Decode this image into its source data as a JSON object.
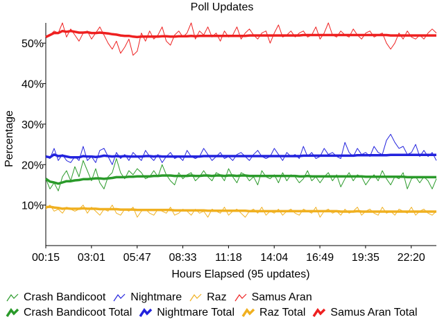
{
  "chart_data": {
    "type": "line",
    "title": "Poll Updates",
    "xlabel": "Hours Elapsed (95 updates)",
    "ylabel": "Percentage",
    "ylim": [
      0,
      55
    ],
    "y_ticks": [
      "10%",
      "20%",
      "30%",
      "40%",
      "50%"
    ],
    "y_tick_values": [
      10,
      20,
      30,
      40,
      50
    ],
    "x_ticks": [
      "00:15",
      "03:01",
      "05:47",
      "08:33",
      "11:18",
      "14:04",
      "16:49",
      "19:35",
      "22:20"
    ],
    "updates": 95,
    "series": [
      {
        "name": "Crash Bandicoot",
        "color": "#2a9a2a",
        "kind": "update",
        "values": [
          16.5,
          14.0,
          15.5,
          13.5,
          17.0,
          18.5,
          16.0,
          19.5,
          17.0,
          21.0,
          18.5,
          16.0,
          19.0,
          15.5,
          14.0,
          17.0,
          18.0,
          21.5,
          18.0,
          16.5,
          18.5,
          17.5,
          19.0,
          18.0,
          16.5,
          17.0,
          18.5,
          17.0,
          20.0,
          17.5,
          16.0,
          15.0,
          18.0,
          16.5,
          17.5,
          18.0,
          16.0,
          17.0,
          18.5,
          17.0,
          16.0,
          18.0,
          17.5,
          16.0,
          19.0,
          17.0,
          15.5,
          18.0,
          17.5,
          16.0,
          17.0,
          15.0,
          18.5,
          17.0,
          16.5,
          17.5,
          15.5,
          18.0,
          16.0,
          17.5,
          17.0,
          15.5,
          16.5,
          18.5,
          16.0,
          17.0,
          15.5,
          17.0,
          18.0,
          16.0,
          17.5,
          14.5,
          16.5,
          18.0,
          16.0,
          17.5,
          17.0,
          15.0,
          16.5,
          17.5,
          16.0,
          18.5,
          16.5,
          15.0,
          17.0,
          16.5,
          18.0,
          14.0,
          16.5,
          17.0,
          15.5,
          17.0,
          16.0,
          14.0,
          16.5
        ]
      },
      {
        "name": "Nightmare",
        "color": "#2222dd",
        "kind": "update",
        "values": [
          22.0,
          21.5,
          24.0,
          21.0,
          22.5,
          21.0,
          20.5,
          22.0,
          21.0,
          24.5,
          21.0,
          22.0,
          20.5,
          23.5,
          24.0,
          22.0,
          20.0,
          23.0,
          21.5,
          22.5,
          21.0,
          23.0,
          22.0,
          21.0,
          23.5,
          22.0,
          21.0,
          22.5,
          20.5,
          22.0,
          23.0,
          21.5,
          22.0,
          21.0,
          23.5,
          22.0,
          21.5,
          22.0,
          24.0,
          22.5,
          21.0,
          22.0,
          23.0,
          21.5,
          22.0,
          21.0,
          22.5,
          23.0,
          22.0,
          21.0,
          22.5,
          23.5,
          22.0,
          21.5,
          22.0,
          24.0,
          22.5,
          21.0,
          23.0,
          22.0,
          22.5,
          21.5,
          24.5,
          22.0,
          23.0,
          21.5,
          22.0,
          24.0,
          22.5,
          23.0,
          22.0,
          21.5,
          25.5,
          23.0,
          22.0,
          24.0,
          22.5,
          23.0,
          22.0,
          24.5,
          23.0,
          22.5,
          26.0,
          27.5,
          25.5,
          24.0,
          24.5,
          22.5,
          23.0,
          25.0,
          22.0,
          23.5,
          22.0,
          23.0,
          21.0
        ]
      },
      {
        "name": "Raz",
        "color": "#f0b020",
        "kind": "update",
        "values": [
          9.0,
          10.0,
          8.5,
          9.0,
          8.0,
          9.5,
          9.0,
          8.5,
          9.0,
          10.0,
          8.0,
          9.5,
          8.5,
          7.5,
          9.0,
          8.5,
          10.0,
          8.0,
          7.5,
          9.0,
          8.5,
          9.5,
          7.0,
          8.5,
          9.0,
          8.0,
          7.5,
          9.0,
          8.5,
          8.0,
          9.5,
          7.5,
          8.0,
          9.0,
          8.5,
          7.5,
          9.0,
          8.0,
          8.5,
          7.0,
          9.0,
          8.5,
          8.0,
          9.5,
          7.5,
          8.5,
          9.0,
          8.0,
          7.0,
          8.5,
          9.0,
          8.0,
          9.5,
          7.5,
          8.5,
          8.0,
          9.0,
          7.5,
          8.5,
          9.0,
          8.0,
          7.5,
          9.0,
          8.5,
          8.0,
          9.5,
          7.0,
          8.5,
          9.0,
          8.0,
          8.5,
          7.5,
          9.0,
          8.0,
          8.5,
          9.5,
          7.5,
          8.5,
          9.0,
          8.0,
          7.5,
          9.5,
          8.0,
          8.5,
          7.5,
          9.0,
          8.5,
          8.0,
          9.5,
          7.5,
          8.5,
          9.0,
          8.0,
          7.5,
          8.5
        ]
      },
      {
        "name": "Samus Aran",
        "color": "#ee2020",
        "kind": "update",
        "values": [
          51.5,
          52.0,
          53.0,
          52.5,
          55.0,
          51.5,
          53.5,
          52.0,
          50.5,
          52.5,
          53.0,
          51.0,
          52.5,
          54.0,
          52.0,
          50.0,
          48.5,
          50.5,
          47.5,
          49.0,
          51.0,
          47.0,
          48.0,
          52.5,
          50.5,
          53.0,
          51.0,
          52.0,
          54.0,
          50.5,
          49.5,
          52.0,
          53.0,
          51.5,
          52.5,
          55.0,
          51.0,
          53.0,
          52.0,
          54.0,
          51.5,
          52.5,
          50.5,
          53.0,
          51.5,
          52.0,
          54.0,
          51.0,
          52.5,
          53.5,
          52.0,
          51.0,
          52.5,
          53.0,
          50.0,
          52.5,
          54.5,
          51.5,
          52.0,
          53.0,
          51.5,
          52.5,
          53.0,
          51.5,
          52.0,
          54.0,
          51.0,
          52.5,
          55.0,
          52.0,
          51.5,
          53.0,
          52.0,
          51.5,
          53.5,
          52.0,
          51.0,
          52.5,
          53.0,
          51.5,
          52.0,
          52.5,
          50.0,
          48.5,
          50.0,
          52.5,
          51.0,
          53.0,
          51.5,
          51.0,
          52.0,
          51.0,
          52.5,
          53.5,
          52.5
        ]
      },
      {
        "name": "Crash Bandicoot Total",
        "color": "#2a9a2a",
        "kind": "total",
        "values": [
          16.5,
          15.8,
          15.6,
          15.3,
          15.6,
          15.9,
          15.9,
          16.1,
          16.2,
          16.4,
          16.4,
          16.5,
          16.6,
          16.6,
          16.5,
          16.6,
          16.7,
          16.9,
          16.9,
          16.9,
          17.0,
          17.0,
          17.1,
          17.1,
          17.1,
          17.1,
          17.2,
          17.2,
          17.3,
          17.3,
          17.3,
          17.2,
          17.2,
          17.2,
          17.2,
          17.3,
          17.2,
          17.2,
          17.3,
          17.3,
          17.2,
          17.3,
          17.3,
          17.2,
          17.3,
          17.3,
          17.2,
          17.3,
          17.3,
          17.2,
          17.2,
          17.2,
          17.2,
          17.2,
          17.2,
          17.2,
          17.2,
          17.2,
          17.2,
          17.2,
          17.2,
          17.1,
          17.1,
          17.2,
          17.1,
          17.1,
          17.1,
          17.1,
          17.1,
          17.1,
          17.1,
          17.1,
          17.1,
          17.1,
          17.1,
          17.1,
          17.1,
          17.0,
          17.0,
          17.0,
          17.0,
          17.0,
          17.0,
          17.0,
          17.0,
          17.0,
          17.0,
          16.9,
          16.9,
          16.9,
          16.9,
          16.9,
          16.9,
          16.9,
          16.9
        ]
      },
      {
        "name": "Nightmare Total",
        "color": "#2222dd",
        "kind": "total",
        "values": [
          22.0,
          21.8,
          22.5,
          22.1,
          22.2,
          22.0,
          21.8,
          21.8,
          21.8,
          22.1,
          22.0,
          22.0,
          21.9,
          22.0,
          22.2,
          22.1,
          22.0,
          22.1,
          22.0,
          22.1,
          22.0,
          22.0,
          22.0,
          22.0,
          22.1,
          22.1,
          22.0,
          22.1,
          22.0,
          22.0,
          22.0,
          22.0,
          22.0,
          22.0,
          22.0,
          22.0,
          22.0,
          22.0,
          22.1,
          22.1,
          22.1,
          22.1,
          22.1,
          22.1,
          22.1,
          22.1,
          22.1,
          22.1,
          22.1,
          22.1,
          22.1,
          22.1,
          22.1,
          22.1,
          22.1,
          22.1,
          22.1,
          22.1,
          22.1,
          22.1,
          22.1,
          22.1,
          22.2,
          22.2,
          22.2,
          22.2,
          22.2,
          22.2,
          22.2,
          22.2,
          22.2,
          22.2,
          22.2,
          22.2,
          22.2,
          22.3,
          22.3,
          22.3,
          22.3,
          22.3,
          22.3,
          22.3,
          22.3,
          22.4,
          22.4,
          22.4,
          22.4,
          22.4,
          22.4,
          22.4,
          22.4,
          22.4,
          22.4,
          22.4,
          22.4
        ]
      },
      {
        "name": "Raz Total",
        "color": "#f0b020",
        "kind": "total",
        "values": [
          9.5,
          9.6,
          9.4,
          9.3,
          9.1,
          9.2,
          9.1,
          9.1,
          9.1,
          9.2,
          9.1,
          9.1,
          9.1,
          9.0,
          9.0,
          9.0,
          9.0,
          9.0,
          8.9,
          8.9,
          8.9,
          8.9,
          8.8,
          8.8,
          8.8,
          8.8,
          8.8,
          8.8,
          8.8,
          8.8,
          8.8,
          8.7,
          8.7,
          8.7,
          8.7,
          8.7,
          8.7,
          8.7,
          8.7,
          8.6,
          8.6,
          8.6,
          8.6,
          8.6,
          8.6,
          8.6,
          8.6,
          8.6,
          8.6,
          8.5,
          8.5,
          8.5,
          8.5,
          8.5,
          8.5,
          8.5,
          8.5,
          8.5,
          8.5,
          8.5,
          8.5,
          8.5,
          8.5,
          8.5,
          8.5,
          8.5,
          8.5,
          8.5,
          8.5,
          8.5,
          8.5,
          8.4,
          8.4,
          8.4,
          8.4,
          8.5,
          8.4,
          8.4,
          8.4,
          8.4,
          8.4,
          8.4,
          8.4,
          8.4,
          8.4,
          8.4,
          8.4,
          8.4,
          8.4,
          8.4,
          8.4,
          8.4,
          8.4,
          8.4,
          8.4
        ]
      },
      {
        "name": "Samus Aran Total",
        "color": "#ee2020",
        "kind": "total",
        "values": [
          51.5,
          52.0,
          52.5,
          52.5,
          53.0,
          52.8,
          53.0,
          52.8,
          52.6,
          52.6,
          52.7,
          52.5,
          52.5,
          52.6,
          52.5,
          52.4,
          52.2,
          52.1,
          51.9,
          51.8,
          51.8,
          51.6,
          51.5,
          51.6,
          51.6,
          51.6,
          51.6,
          51.6,
          51.7,
          51.7,
          51.6,
          51.6,
          51.7,
          51.7,
          51.7,
          51.8,
          51.7,
          51.8,
          51.8,
          51.8,
          51.8,
          51.8,
          51.8,
          51.8,
          51.8,
          51.8,
          51.8,
          51.8,
          51.8,
          51.9,
          51.9,
          51.9,
          51.9,
          51.9,
          51.9,
          51.9,
          51.9,
          51.9,
          51.9,
          51.9,
          51.9,
          51.9,
          52.0,
          52.0,
          52.0,
          52.0,
          52.0,
          52.0,
          52.0,
          52.0,
          52.0,
          52.0,
          52.0,
          52.0,
          52.0,
          52.0,
          52.0,
          52.0,
          52.0,
          52.0,
          52.0,
          52.0,
          52.0,
          51.9,
          51.9,
          51.9,
          51.9,
          51.9,
          51.9,
          51.9,
          51.9,
          51.9,
          51.9,
          51.9,
          51.9
        ]
      }
    ],
    "legend_placement": "bottom",
    "grid": false
  }
}
